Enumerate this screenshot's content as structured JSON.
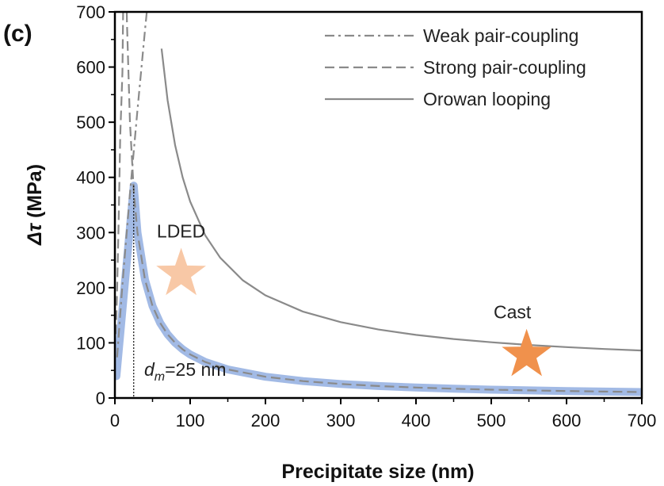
{
  "chart_data": {
    "type": "line",
    "panel_label": "(c)",
    "xlabel": "Precipitate size (nm)",
    "ylabel_symbol": "Δτ",
    "ylabel_unit": " (MPa)",
    "xlim": [
      0,
      700
    ],
    "ylim": [
      0,
      700
    ],
    "xticks": [
      0,
      100,
      200,
      300,
      400,
      500,
      600,
      700
    ],
    "yticks": [
      0,
      100,
      200,
      300,
      400,
      500,
      600,
      700
    ],
    "legend_position": "top-right",
    "series": [
      {
        "name": "Weak pair-coupling",
        "style": "dashdot",
        "color": "#8a8a8a",
        "formula": "weak",
        "x": [
          3,
          5,
          10,
          15,
          20,
          25,
          30,
          35,
          40,
          45,
          48
        ]
      },
      {
        "name": "Strong pair-coupling",
        "style": "dashed",
        "color": "#8a8a8a",
        "formula": "strong",
        "x": [
          1,
          2,
          3,
          5,
          7,
          10,
          13,
          16,
          20,
          25,
          30,
          40,
          50,
          60,
          70,
          80,
          90,
          100,
          120,
          150,
          200,
          250,
          300,
          350,
          400,
          450,
          500,
          550,
          600,
          650,
          700
        ]
      },
      {
        "name": "Orowan looping",
        "style": "solid",
        "color": "#8a8a8a",
        "formula": "orowan",
        "x": [
          62,
          70,
          80,
          90,
          100,
          120,
          140,
          170,
          200,
          250,
          300,
          350,
          400,
          450,
          500,
          550,
          600,
          650,
          700
        ]
      }
    ],
    "highlight": {
      "color": "#9db6e4",
      "peak": [
        25,
        385
      ],
      "x": [
        2,
        25,
        30,
        40,
        50,
        60,
        70,
        80,
        90,
        100,
        120,
        150,
        200,
        250,
        300,
        350,
        400,
        450,
        500,
        550,
        600,
        650,
        700
      ]
    },
    "dm_line": {
      "x": 25,
      "label_base": "d",
      "label_sub": "m",
      "label_rest": "=25 nm"
    },
    "markers": [
      {
        "label": "LDED",
        "x": 88,
        "y": 225,
        "color": "#f8c8a6"
      },
      {
        "label": "Cast",
        "x": 547,
        "y": 78,
        "color": "#f0914c"
      }
    ]
  }
}
